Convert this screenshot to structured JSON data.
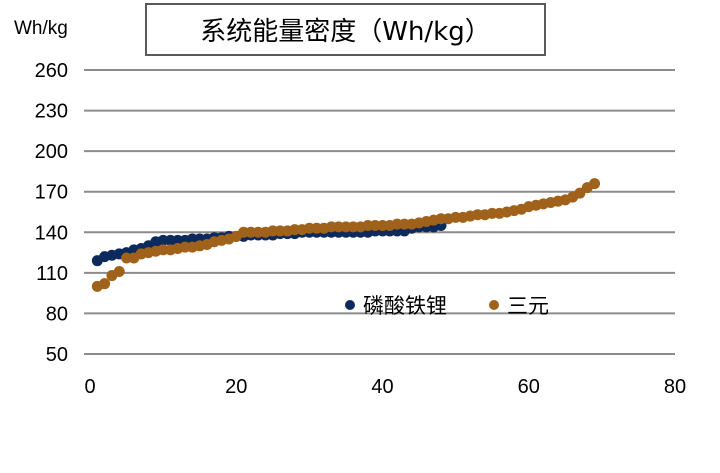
{
  "chart_data": {
    "type": "scatter",
    "title": "系统能量密度（Wh/kg）",
    "ylabel": "Wh/kg",
    "xlabel": "",
    "xlim": [
      0,
      80
    ],
    "ylim": [
      50,
      260
    ],
    "xticks": [
      0,
      20,
      40,
      60,
      80
    ],
    "yticks": [
      50,
      80,
      110,
      140,
      170,
      200,
      230,
      260
    ],
    "grid": "horizontal",
    "legend_position": "inside-bottom-right",
    "series": [
      {
        "name": "磷酸铁锂",
        "color": "#0d2a5c",
        "x": [
          1,
          2,
          3,
          4,
          5,
          6,
          7,
          8,
          9,
          10,
          11,
          12,
          13,
          14,
          15,
          16,
          17,
          18,
          19,
          20,
          21,
          22,
          23,
          24,
          25,
          26,
          27,
          28,
          29,
          30,
          31,
          32,
          33,
          34,
          35,
          36,
          37,
          38,
          39,
          40,
          41,
          42,
          43,
          44,
          45,
          46,
          47,
          48
        ],
        "y": [
          119,
          122,
          123,
          124,
          125,
          127,
          128,
          130,
          133,
          134,
          134,
          134,
          134,
          135,
          135,
          135,
          136,
          136,
          137,
          137,
          137,
          138,
          138,
          138,
          138,
          139,
          139,
          139,
          140,
          140,
          140,
          140,
          140,
          140,
          140,
          140,
          140,
          140,
          141,
          141,
          141,
          141,
          141,
          143,
          144,
          144,
          144,
          145
        ]
      },
      {
        "name": "三元",
        "color": "#a0621a",
        "x": [
          1,
          2,
          3,
          4,
          5,
          6,
          7,
          8,
          9,
          10,
          11,
          12,
          13,
          14,
          15,
          16,
          17,
          18,
          19,
          20,
          21,
          22,
          23,
          24,
          25,
          26,
          27,
          28,
          29,
          30,
          31,
          32,
          33,
          34,
          35,
          36,
          37,
          38,
          39,
          40,
          41,
          42,
          43,
          44,
          45,
          46,
          47,
          48,
          49,
          50,
          51,
          52,
          53,
          54,
          55,
          56,
          57,
          58,
          59,
          60,
          61,
          62,
          63,
          64,
          65,
          66,
          67,
          68,
          69
        ],
        "y": [
          100,
          102,
          108,
          111,
          121,
          121,
          124,
          125,
          126,
          127,
          127,
          128,
          129,
          129,
          130,
          131,
          133,
          134,
          135,
          137,
          140,
          140,
          140,
          140,
          141,
          141,
          141,
          142,
          142,
          143,
          143,
          143,
          144,
          144,
          144,
          144,
          144,
          145,
          145,
          145,
          145,
          146,
          146,
          146,
          147,
          148,
          149,
          150,
          150,
          151,
          151,
          152,
          153,
          153,
          154,
          154,
          155,
          156,
          157,
          159,
          160,
          161,
          162,
          163,
          164,
          166,
          169,
          173,
          176
        ]
      }
    ]
  },
  "header": {
    "unit_label": "Wh/kg",
    "title": "系统能量密度（Wh/kg）"
  },
  "legend": {
    "items": [
      {
        "label": "磷酸铁锂",
        "color": "#0d2a5c"
      },
      {
        "label": "三元",
        "color": "#a0621a"
      }
    ]
  }
}
